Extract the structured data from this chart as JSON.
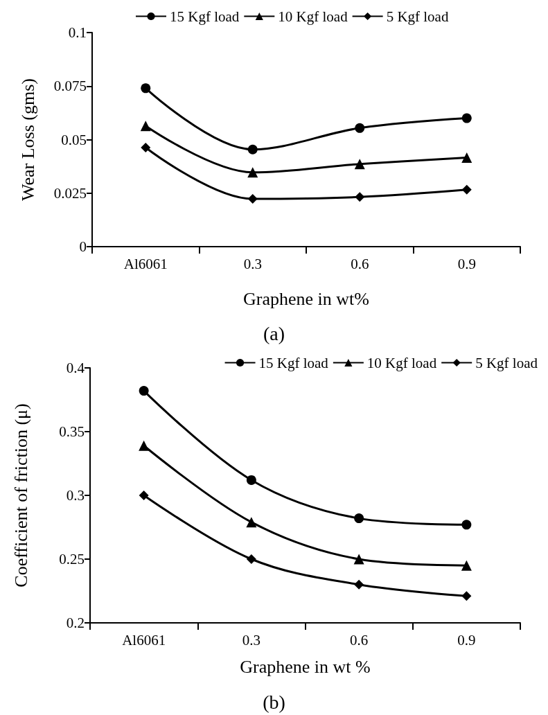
{
  "chart_data": [
    {
      "type": "line",
      "title": "(a)",
      "xlabel": "Graphene in wt%",
      "ylabel": "Wear Loss (gms)",
      "categories": [
        "Al6061",
        "0.3",
        "0.6",
        "0.9"
      ],
      "ylim": [
        0,
        0.1
      ],
      "yticks": [
        0,
        0.025,
        0.05,
        0.075,
        0.1
      ],
      "grid": false,
      "legend": "top",
      "line_style": "solid",
      "series": [
        {
          "name": "15 Kgf load",
          "color": "#000000",
          "marker": "circle",
          "values": [
            0.074,
            0.0454,
            0.0554,
            0.06
          ]
        },
        {
          "name": "10 Kgf load",
          "color": "#000000",
          "marker": "triangle",
          "values": [
            0.0564,
            0.0347,
            0.0386,
            0.0416
          ]
        },
        {
          "name": "5 Kgf load",
          "color": "#000000",
          "marker": "diamond",
          "values": [
            0.0463,
            0.0223,
            0.0232,
            0.0266
          ]
        }
      ]
    },
    {
      "type": "line",
      "title": "(b)",
      "xlabel": "Graphene in wt %",
      "ylabel": "Coefficient of friction (μ)",
      "categories": [
        "Al6061",
        "0.3",
        "0.6",
        "0.9"
      ],
      "ylim": [
        0.2,
        0.4
      ],
      "yticks": [
        0.2,
        0.25,
        0.3,
        0.35,
        0.4
      ],
      "grid": false,
      "legend": "top right",
      "line_style": "solid",
      "series": [
        {
          "name": "15 Kgf load",
          "color": "#000000",
          "marker": "circle",
          "values": [
            0.382,
            0.312,
            0.282,
            0.277
          ]
        },
        {
          "name": "10 Kgf load",
          "color": "#000000",
          "marker": "triangle",
          "values": [
            0.339,
            0.279,
            0.25,
            0.245
          ]
        },
        {
          "name": "5 Kgf load",
          "color": "#000000",
          "marker": "diamond",
          "values": [
            0.3,
            0.25,
            0.23,
            0.221
          ]
        }
      ]
    }
  ]
}
